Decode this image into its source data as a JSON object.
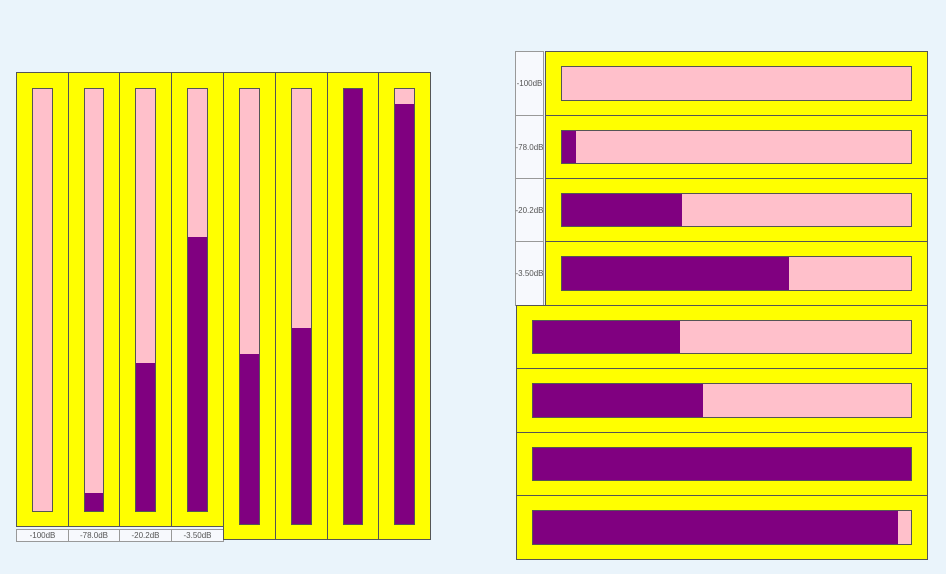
{
  "colors": {
    "meter_bg": "#ffff00",
    "track": "#ffc0cb",
    "fill": "#800080"
  },
  "vertical_meters": [
    {
      "label": "-100dB",
      "level": 0
    },
    {
      "label": "-78.0dB",
      "level": 0.043
    },
    {
      "label": "-20.2dB",
      "level": 0.35
    },
    {
      "label": "-3.50dB",
      "level": 0.65
    },
    {
      "level": 0.39
    },
    {
      "level": 0.45
    },
    {
      "level": 1.0
    },
    {
      "level": 0.966
    }
  ],
  "horizontal_meters": [
    {
      "label": "-100dB",
      "level": 0
    },
    {
      "label": "-78.0dB",
      "level": 0.04
    },
    {
      "label": "-20.2dB",
      "level": 0.345
    },
    {
      "label": "-3.50dB",
      "level": 0.65
    },
    {
      "level": 0.39
    },
    {
      "level": 0.45
    },
    {
      "level": 1.0
    },
    {
      "level": 0.966
    }
  ]
}
